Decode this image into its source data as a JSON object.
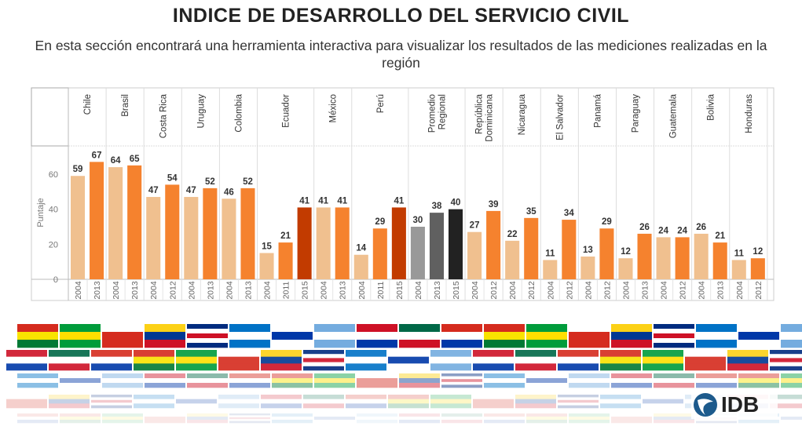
{
  "header": {
    "title": "INDICE DE DESARROLLO DEL SERVICIO CIVIL",
    "subtitle": "En esta sección encontrará una herramienta interactiva para visualizar los resultados de las mediciones realizadas en la región"
  },
  "chart_data": {
    "type": "bar",
    "title": "",
    "ylabel": "Puntaje",
    "xlabel": "",
    "ylim": [
      0,
      76
    ],
    "yticks": [
      0,
      20,
      40,
      60
    ],
    "grid": false,
    "colors": {
      "2004": "#f0c08f",
      "2011": "#f5822e",
      "2012": "#f5822e",
      "2013": "#f5822e",
      "2015": "#c23b00",
      "regional_2004": "#999999",
      "regional_2013": "#606060",
      "regional_2015": "#222222"
    },
    "panels": [
      {
        "label": [
          "Chile"
        ],
        "years": [
          "2004",
          "2013"
        ],
        "values": [
          59,
          67
        ]
      },
      {
        "label": [
          "Brasil"
        ],
        "years": [
          "2004",
          "2013"
        ],
        "values": [
          64,
          65
        ]
      },
      {
        "label": [
          "Costa Rica"
        ],
        "years": [
          "2004",
          "2012"
        ],
        "values": [
          47,
          54
        ]
      },
      {
        "label": [
          "Uruguay"
        ],
        "years": [
          "2004",
          "2013"
        ],
        "values": [
          47,
          52
        ]
      },
      {
        "label": [
          "Colombia"
        ],
        "years": [
          "2004",
          "2013"
        ],
        "values": [
          46,
          52
        ]
      },
      {
        "label": [
          "Ecuador"
        ],
        "years": [
          "2004",
          "2011",
          "2015"
        ],
        "values": [
          15,
          21,
          41
        ]
      },
      {
        "label": [
          "México"
        ],
        "years": [
          "2004",
          "2013"
        ],
        "values": [
          41,
          41
        ]
      },
      {
        "label": [
          "Perú"
        ],
        "years": [
          "2004",
          "2011",
          "2015"
        ],
        "values": [
          14,
          29,
          41
        ]
      },
      {
        "label": [
          "Promedio",
          "Regional"
        ],
        "years": [
          "2004",
          "2013",
          "2015"
        ],
        "values": [
          30,
          38,
          40
        ],
        "regional": true
      },
      {
        "label": [
          "República",
          "Dominicana"
        ],
        "years": [
          "2004",
          "2012"
        ],
        "values": [
          27,
          39
        ]
      },
      {
        "label": [
          "Nicaragua"
        ],
        "years": [
          "2004",
          "2012"
        ],
        "values": [
          22,
          35
        ]
      },
      {
        "label": [
          "El Salvador"
        ],
        "years": [
          "2004",
          "2012"
        ],
        "values": [
          11,
          34
        ]
      },
      {
        "label": [
          "Panamá"
        ],
        "years": [
          "2004",
          "2012"
        ],
        "values": [
          13,
          29
        ]
      },
      {
        "label": [
          "Paraguay"
        ],
        "years": [
          "2004",
          "2013"
        ],
        "values": [
          12,
          26
        ]
      },
      {
        "label": [
          "Guatemala"
        ],
        "years": [
          "2004",
          "2012"
        ],
        "values": [
          24,
          24
        ]
      },
      {
        "label": [
          "Bolivia"
        ],
        "years": [
          "2004",
          "2013"
        ],
        "values": [
          26,
          21
        ]
      },
      {
        "label": [
          "Honduras"
        ],
        "years": [
          "2004",
          "2012"
        ],
        "values": [
          11,
          12
        ]
      }
    ]
  },
  "logo": {
    "text": "IDB"
  }
}
